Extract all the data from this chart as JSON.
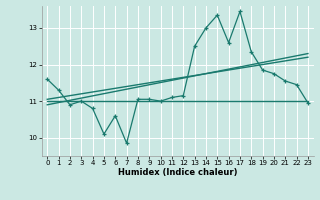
{
  "xlabel": "Humidex (Indice chaleur)",
  "ylabel": "",
  "background_color": "#cbe8e3",
  "grid_color": "#ffffff",
  "line_color": "#1a7a6e",
  "xlim": [
    -0.5,
    23.5
  ],
  "ylim": [
    9.5,
    13.6
  ],
  "yticks": [
    10,
    11,
    12,
    13
  ],
  "xticks": [
    0,
    1,
    2,
    3,
    4,
    5,
    6,
    7,
    8,
    9,
    10,
    11,
    12,
    13,
    14,
    15,
    16,
    17,
    18,
    19,
    20,
    21,
    22,
    23
  ],
  "series1_x": [
    0,
    1,
    2,
    3,
    4,
    5,
    6,
    7,
    8,
    9,
    10,
    11,
    12,
    13,
    14,
    15,
    16,
    17,
    18,
    19,
    20,
    21,
    22,
    23
  ],
  "series1_y": [
    11.6,
    11.3,
    10.9,
    11.0,
    10.8,
    10.1,
    10.6,
    9.85,
    11.05,
    11.05,
    11.0,
    11.1,
    11.15,
    12.5,
    13.0,
    13.35,
    12.6,
    13.45,
    12.35,
    11.85,
    11.75,
    11.55,
    11.45,
    10.95
  ],
  "series2_x": [
    0,
    23
  ],
  "series2_y": [
    11.0,
    11.0
  ],
  "series3_x": [
    0,
    23
  ],
  "series3_y": [
    10.9,
    12.3
  ],
  "series4_x": [
    0,
    23
  ],
  "series4_y": [
    11.05,
    12.2
  ]
}
